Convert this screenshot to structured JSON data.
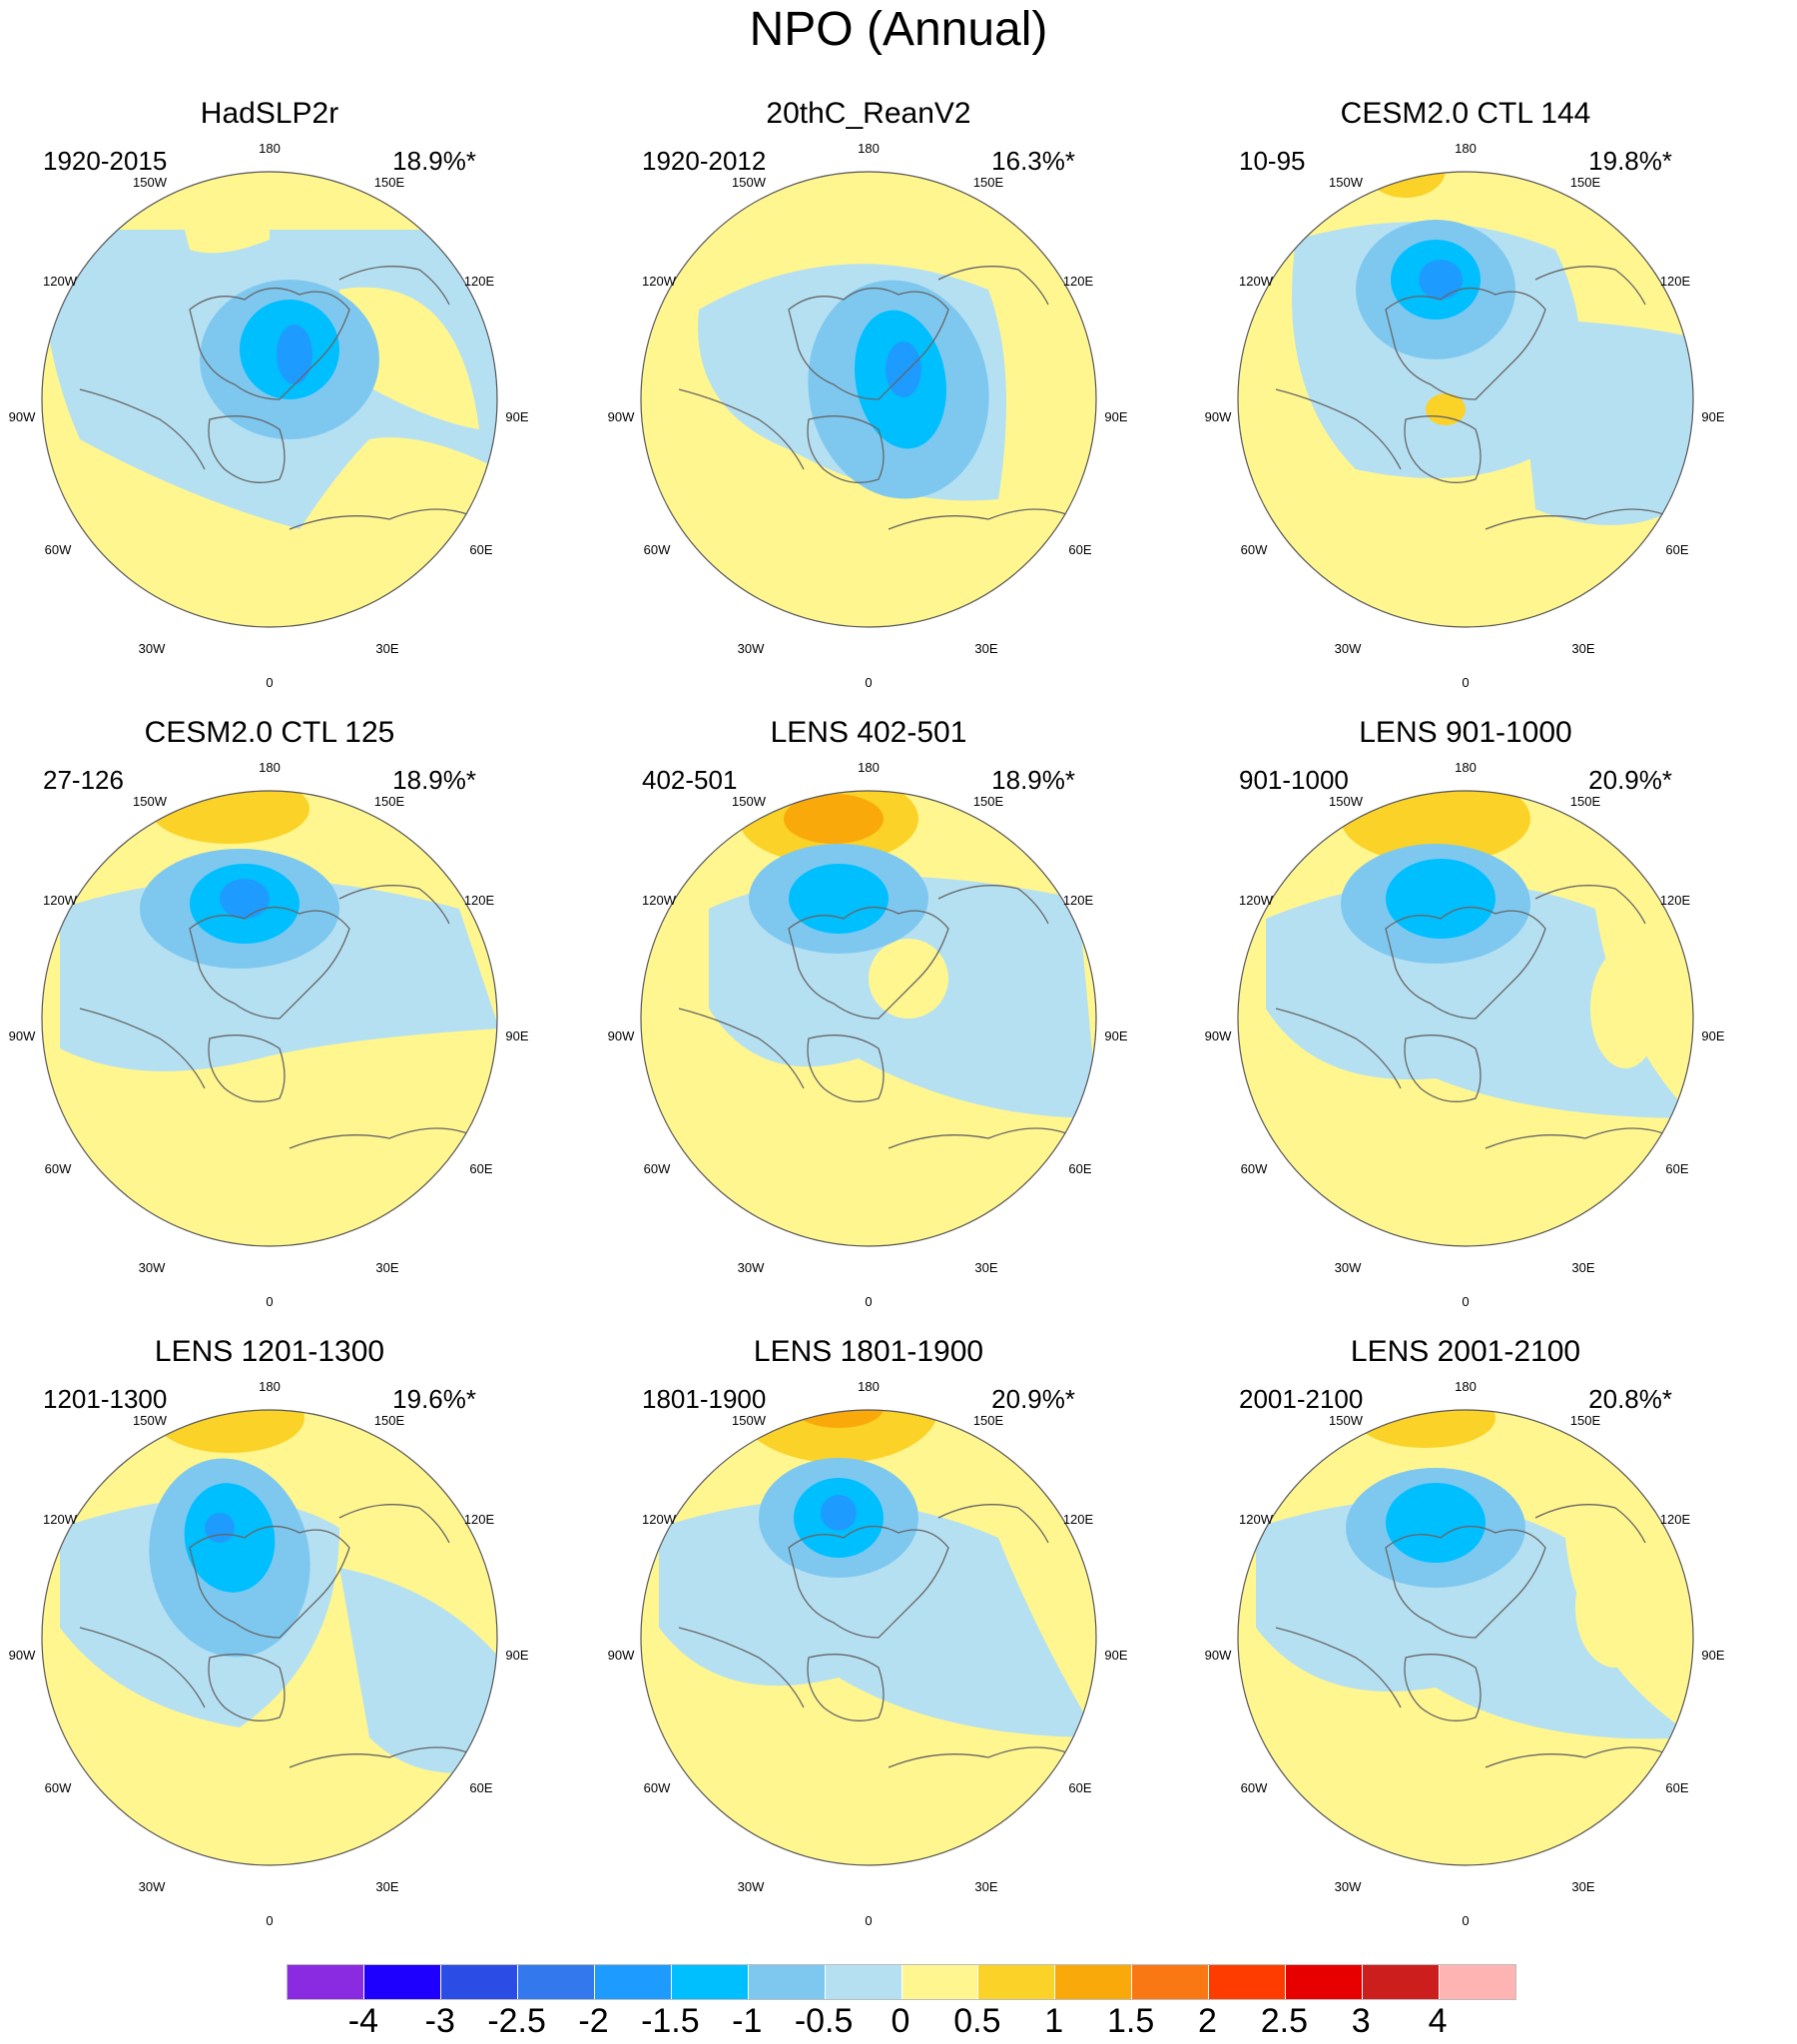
{
  "title": "NPO (Annual)",
  "panels": [
    {
      "title": "HadSLP2r",
      "years": "1920-2015",
      "pct": "18.9%*"
    },
    {
      "title": "20thC_ReanV2",
      "years": "1920-2012",
      "pct": "16.3%*"
    },
    {
      "title": "CESM2.0 CTL 144",
      "years": "10-95",
      "pct": "19.8%*"
    },
    {
      "title": "CESM2.0 CTL 125",
      "years": "27-126",
      "pct": "18.9%*"
    },
    {
      "title": "LENS 402-501",
      "years": "402-501",
      "pct": "18.9%*"
    },
    {
      "title": "LENS 901-1000",
      "years": "901-1000",
      "pct": "20.9%*"
    },
    {
      "title": "LENS 1201-1300",
      "years": "1201-1300",
      "pct": "19.6%*"
    },
    {
      "title": "LENS 1801-1900",
      "years": "1801-1900",
      "pct": "20.9%*"
    },
    {
      "title": "LENS 2001-2100",
      "years": "2001-2100",
      "pct": "20.8%*"
    }
  ],
  "lon_labels": {
    "l180": "180",
    "l150w": "150W",
    "l150e": "150E",
    "l120w": "120W",
    "l120e": "120E",
    "l90w": "90W",
    "l90e": "90E",
    "l60w": "60W",
    "l60e": "60E",
    "l30w": "30W",
    "l30e": "30E",
    "l0": "0"
  },
  "colorbar": {
    "colors": [
      "#8a2be2",
      "#1e00ff",
      "#2c4ce6",
      "#3478ee",
      "#1e9bff",
      "#00bfff",
      "#7ec8f0",
      "#b5e0f2",
      "#fff68f",
      "#fad228",
      "#faa90a",
      "#fa7814",
      "#ff3c00",
      "#e60000",
      "#cd1e1e",
      "#ffb4b4"
    ],
    "labels": [
      "-4",
      "-3",
      "-2.5",
      "-2",
      "-1.5",
      "-1",
      "-0.5",
      "0",
      "0.5",
      "1",
      "1.5",
      "2",
      "2.5",
      "3",
      "4"
    ]
  }
}
